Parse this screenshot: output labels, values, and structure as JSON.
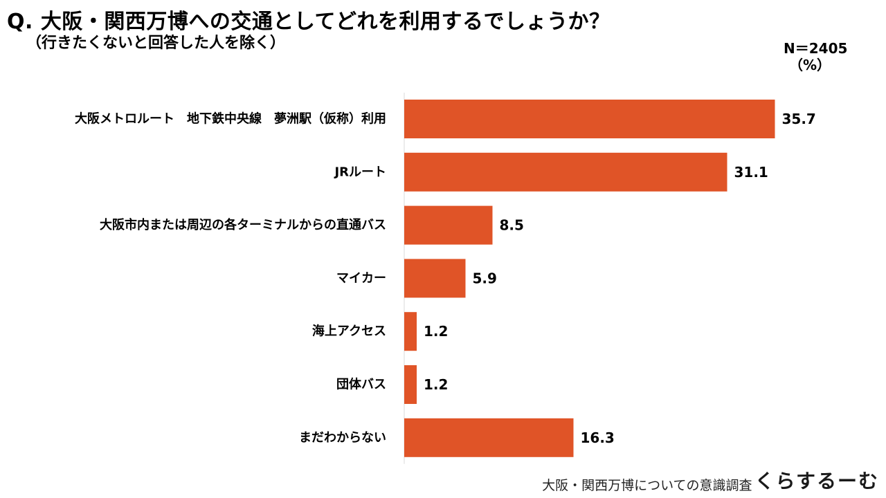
{
  "title": "Q. 大阪・関西万博への交通としてどれを利用するでしょうか？",
  "subtitle": "（行きたくないと回答した人を除く）",
  "sample_size": "N＝2405",
  "unit": "（%）",
  "footer": {
    "text": "大阪・関西万博についての意識調査",
    "brand": "くらするーむ"
  },
  "colors": {
    "bar": "#e05427"
  },
  "chart_data": {
    "type": "bar",
    "orientation": "horizontal",
    "categories": [
      "大阪メトロルート　地下鉄中央線　夢洲駅（仮称）利用",
      "JRルート",
      "大阪市内または周辺の各ターミナルからの直通バス",
      "マイカー",
      "海上アクセス",
      "団体バス",
      "まだわからない"
    ],
    "values": [
      35.7,
      31.1,
      8.5,
      5.9,
      1.2,
      1.2,
      16.3
    ],
    "value_labels": [
      "35.7",
      "31.1",
      "8.5",
      "5.9",
      "1.2",
      "1.2",
      "16.3"
    ],
    "xlim": [
      0,
      40
    ],
    "grid": false,
    "legend": "none"
  }
}
